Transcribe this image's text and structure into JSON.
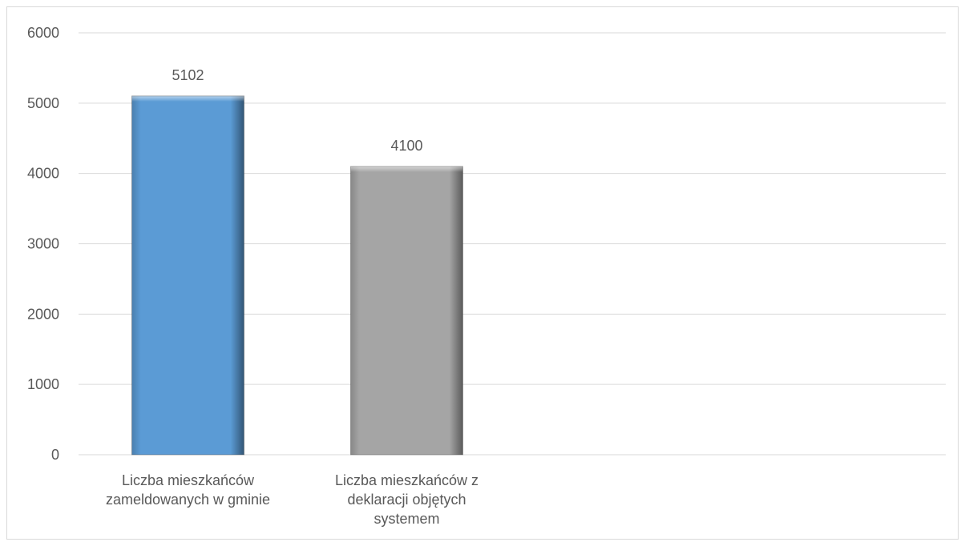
{
  "chart_data": {
    "type": "bar",
    "categories": [
      "Liczba mieszkańców zameldowanych w gminie",
      "Liczba mieszkańców z deklaracji objętych systemem"
    ],
    "category_label_lines": [
      [
        "Liczba mieszkańców",
        "zameldowanych w gminie"
      ],
      [
        "Liczba mieszkańców z",
        "deklaracji objętych",
        "systemem"
      ]
    ],
    "values": [
      5102,
      4100
    ],
    "data_labels": [
      "5102",
      "4100"
    ],
    "bar_colors": [
      "#5b9bd5",
      "#a5a5a5"
    ],
    "ylim": [
      0,
      6000
    ],
    "yticks": [
      0,
      1000,
      2000,
      3000,
      4000,
      5000,
      6000
    ],
    "ytick_labels": [
      "0",
      "1000",
      "2000",
      "3000",
      "4000",
      "5000",
      "6000"
    ],
    "grid": true,
    "legend": "none",
    "title": "",
    "xlabel": "",
    "ylabel": ""
  }
}
